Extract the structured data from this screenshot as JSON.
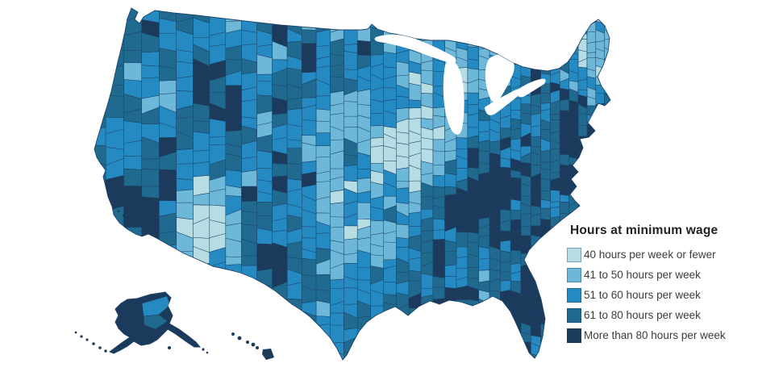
{
  "legend": {
    "title": "Hours at minimum wage",
    "items": [
      {
        "label": "40 hours per week or fewer",
        "color": "#b7dde4"
      },
      {
        "label": "41 to 50 hours per week",
        "color": "#6db8d8"
      },
      {
        "label": "51 to 60 hours per week",
        "color": "#2589c2"
      },
      {
        "label": "61 to 80 hours per week",
        "color": "#206a90"
      },
      {
        "label": "More than 80 hours per week",
        "color": "#1b3a5c"
      }
    ]
  },
  "map": {
    "description": "United States county-level choropleth with Alaska and Hawaii insets",
    "county_border_color": "#1d4367",
    "background_color": "#ffffff",
    "water_color": "#ffffff"
  }
}
